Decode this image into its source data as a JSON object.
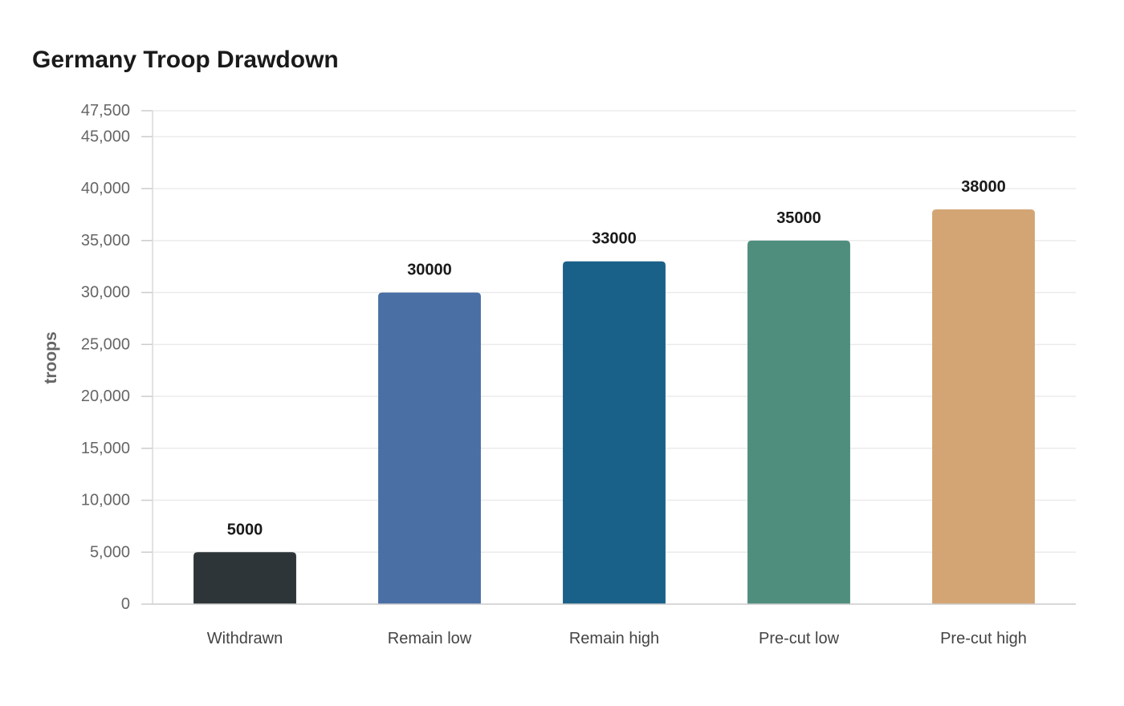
{
  "chart_data": {
    "type": "bar",
    "title": "Germany Troop Drawdown",
    "xlabel": "",
    "ylabel": "troops",
    "categories": [
      "Withdrawn",
      "Remain low",
      "Remain high",
      "Pre-cut low",
      "Pre-cut high"
    ],
    "values": [
      5000,
      30000,
      33000,
      35000,
      38000
    ],
    "data_labels": [
      "5000",
      "30000",
      "33000",
      "35000",
      "38000"
    ],
    "colors": [
      "#2e3538",
      "#4a6fa5",
      "#1a6189",
      "#4f8e7c",
      "#d3a574"
    ],
    "ylim": [
      0,
      47500
    ],
    "yticks": [
      0,
      5000,
      10000,
      15000,
      20000,
      25000,
      30000,
      35000,
      40000,
      45000,
      47500
    ],
    "ytick_labels": [
      "0",
      "5,000",
      "10,000",
      "15,000",
      "20,000",
      "25,000",
      "30,000",
      "35,000",
      "40,000",
      "45,000",
      "47,500"
    ],
    "grid": true,
    "legend": "none"
  }
}
